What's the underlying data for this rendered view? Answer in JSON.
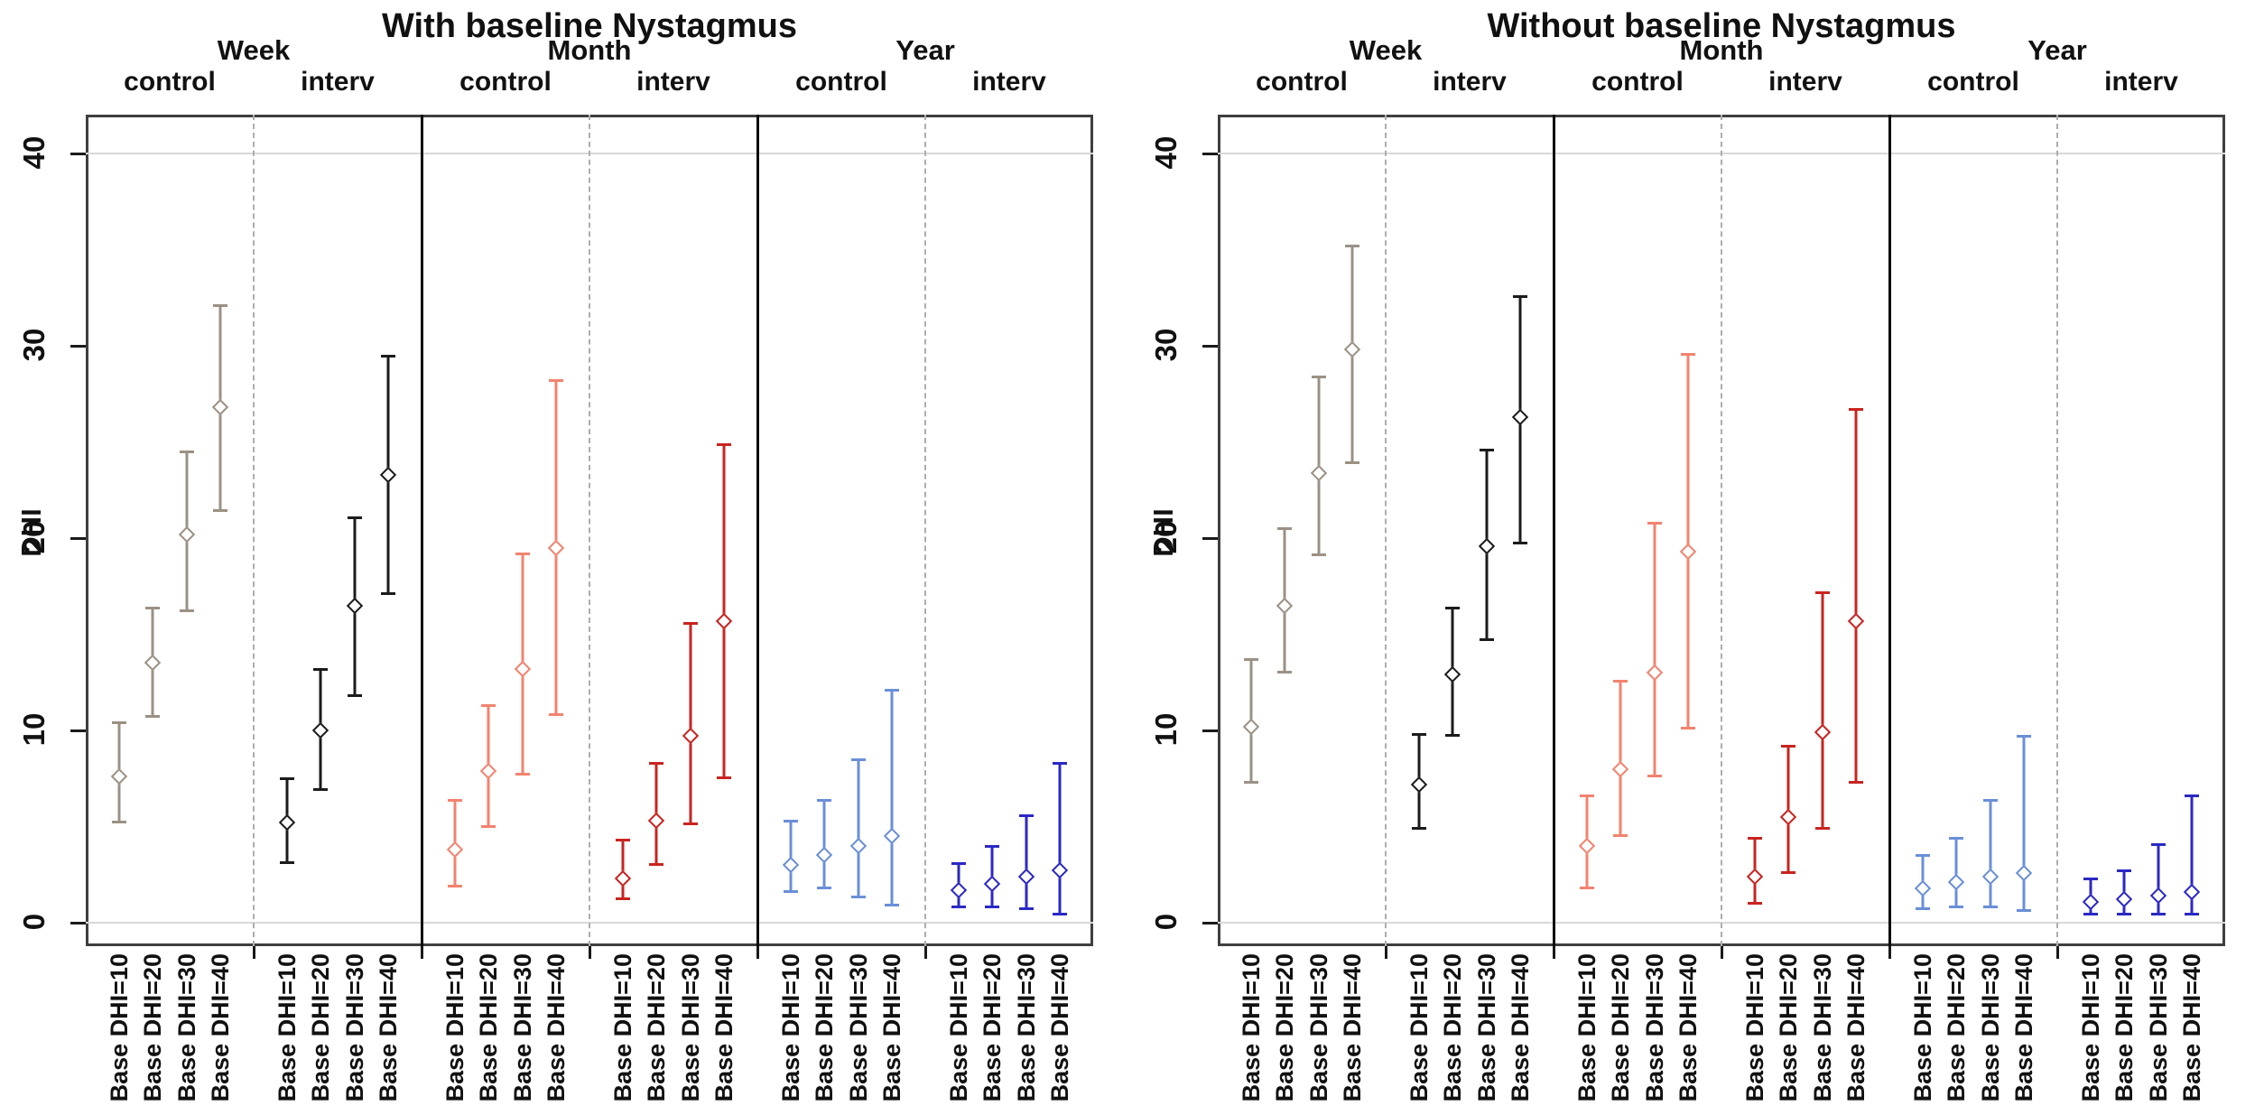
{
  "figure_name": "DHI forest plot by follow-up time and treatment arm",
  "palette": {
    "week_control": "#9B9184",
    "week_interv": "#1B1B1B",
    "month_control": "#F2836F",
    "month_interv": "#C82420",
    "year_control": "#6A8FD8",
    "year_interv": "#2B28C4",
    "gridline": "#d8d8d8",
    "solid_divider": "#0a0a0a",
    "dashed_divider": "#adadad"
  },
  "chart_data": [
    {
      "type": "errorbar",
      "title": "With baseline Nystagmus",
      "ylabel": "DHI",
      "ylim": [
        0,
        40
      ],
      "yticks": [
        0,
        10,
        20,
        30,
        40
      ],
      "gridlines_y": [
        0,
        40
      ],
      "legend_position": "none",
      "sections": [
        {
          "label": "Week",
          "groups": [
            {
              "label": "control",
              "series": "week_control",
              "color": "#9B9184",
              "points": [
                {
                  "label": "Base DHI=10",
                  "est": 7.6,
                  "lo": 5.2,
                  "hi": 10.4
                },
                {
                  "label": "Base DHI=20",
                  "est": 13.5,
                  "lo": 10.7,
                  "hi": 16.4
                },
                {
                  "label": "Base DHI=30",
                  "est": 20.2,
                  "lo": 16.2,
                  "hi": 24.5
                },
                {
                  "label": "Base DHI=40",
                  "est": 26.8,
                  "lo": 21.4,
                  "hi": 32.1
                }
              ]
            },
            {
              "label": "interv",
              "series": "week_interv",
              "color": "#1B1B1B",
              "points": [
                {
                  "label": "Base DHI=10",
                  "est": 5.2,
                  "lo": 3.1,
                  "hi": 7.5
                },
                {
                  "label": "Base DHI=20",
                  "est": 10.0,
                  "lo": 6.9,
                  "hi": 13.2
                },
                {
                  "label": "Base DHI=30",
                  "est": 16.5,
                  "lo": 11.8,
                  "hi": 21.1
                },
                {
                  "label": "Base DHI=40",
                  "est": 23.3,
                  "lo": 17.1,
                  "hi": 29.5
                }
              ]
            }
          ]
        },
        {
          "label": "Month",
          "groups": [
            {
              "label": "control",
              "series": "month_control",
              "color": "#F2836F",
              "points": [
                {
                  "label": "Base DHI=10",
                  "est": 3.8,
                  "lo": 1.9,
                  "hi": 6.4
                },
                {
                  "label": "Base DHI=20",
                  "est": 7.9,
                  "lo": 5.0,
                  "hi": 11.3
                },
                {
                  "label": "Base DHI=30",
                  "est": 13.2,
                  "lo": 7.7,
                  "hi": 19.2
                },
                {
                  "label": "Base DHI=40",
                  "est": 19.5,
                  "lo": 10.8,
                  "hi": 28.2
                }
              ]
            },
            {
              "label": "interv",
              "series": "month_interv",
              "color": "#C82420",
              "points": [
                {
                  "label": "Base DHI=10",
                  "est": 2.3,
                  "lo": 1.2,
                  "hi": 4.3
                },
                {
                  "label": "Base DHI=20",
                  "est": 5.3,
                  "lo": 3.0,
                  "hi": 8.3
                },
                {
                  "label": "Base DHI=30",
                  "est": 9.7,
                  "lo": 5.1,
                  "hi": 15.6
                },
                {
                  "label": "Base DHI=40",
                  "est": 15.7,
                  "lo": 7.5,
                  "hi": 24.9
                }
              ]
            }
          ]
        },
        {
          "label": "Year",
          "groups": [
            {
              "label": "control",
              "series": "year_control",
              "color": "#6A8FD8",
              "points": [
                {
                  "label": "Base DHI=10",
                  "est": 3.0,
                  "lo": 1.6,
                  "hi": 5.3
                },
                {
                  "label": "Base DHI=20",
                  "est": 3.5,
                  "lo": 1.8,
                  "hi": 6.4
                },
                {
                  "label": "Base DHI=30",
                  "est": 4.0,
                  "lo": 1.3,
                  "hi": 8.5
                },
                {
                  "label": "Base DHI=40",
                  "est": 4.5,
                  "lo": 0.9,
                  "hi": 12.1
                }
              ]
            },
            {
              "label": "interv",
              "series": "year_interv",
              "color": "#2B28C4",
              "points": [
                {
                  "label": "Base DHI=10",
                  "est": 1.7,
                  "lo": 0.8,
                  "hi": 3.1
                },
                {
                  "label": "Base DHI=20",
                  "est": 2.0,
                  "lo": 0.8,
                  "hi": 4.0
                },
                {
                  "label": "Base DHI=30",
                  "est": 2.4,
                  "lo": 0.7,
                  "hi": 5.6
                },
                {
                  "label": "Base DHI=40",
                  "est": 2.7,
                  "lo": 0.4,
                  "hi": 8.3
                }
              ]
            }
          ]
        }
      ]
    },
    {
      "type": "errorbar",
      "title": "Without baseline Nystagmus",
      "ylabel": "DHI",
      "ylim": [
        0,
        40
      ],
      "yticks": [
        0,
        10,
        20,
        30,
        40
      ],
      "gridlines_y": [
        0,
        40
      ],
      "legend_position": "none",
      "sections": [
        {
          "label": "Week",
          "groups": [
            {
              "label": "control",
              "series": "week_control",
              "color": "#9B9184",
              "points": [
                {
                  "label": "Base DHI=10",
                  "est": 10.2,
                  "lo": 7.3,
                  "hi": 13.7
                },
                {
                  "label": "Base DHI=20",
                  "est": 16.5,
                  "lo": 13.0,
                  "hi": 20.5
                },
                {
                  "label": "Base DHI=30",
                  "est": 23.4,
                  "lo": 19.1,
                  "hi": 28.4
                },
                {
                  "label": "Base DHI=40",
                  "est": 29.8,
                  "lo": 23.9,
                  "hi": 35.2
                }
              ]
            },
            {
              "label": "interv",
              "series": "week_interv",
              "color": "#1B1B1B",
              "points": [
                {
                  "label": "Base DHI=10",
                  "est": 7.2,
                  "lo": 4.9,
                  "hi": 9.8
                },
                {
                  "label": "Base DHI=20",
                  "est": 12.9,
                  "lo": 9.7,
                  "hi": 16.4
                },
                {
                  "label": "Base DHI=30",
                  "est": 19.6,
                  "lo": 14.7,
                  "hi": 24.6
                },
                {
                  "label": "Base DHI=40",
                  "est": 26.3,
                  "lo": 19.7,
                  "hi": 32.6
                }
              ]
            }
          ]
        },
        {
          "label": "Month",
          "groups": [
            {
              "label": "control",
              "series": "month_control",
              "color": "#F2836F",
              "points": [
                {
                  "label": "Base DHI=10",
                  "est": 4.0,
                  "lo": 1.8,
                  "hi": 6.6
                },
                {
                  "label": "Base DHI=20",
                  "est": 8.0,
                  "lo": 4.5,
                  "hi": 12.6
                },
                {
                  "label": "Base DHI=30",
                  "est": 13.0,
                  "lo": 7.6,
                  "hi": 20.8
                },
                {
                  "label": "Base DHI=40",
                  "est": 19.3,
                  "lo": 10.1,
                  "hi": 29.6
                }
              ]
            },
            {
              "label": "interv",
              "series": "month_interv",
              "color": "#C82420",
              "points": [
                {
                  "label": "Base DHI=10",
                  "est": 2.4,
                  "lo": 1.0,
                  "hi": 4.4
                },
                {
                  "label": "Base DHI=20",
                  "est": 5.5,
                  "lo": 2.6,
                  "hi": 9.2
                },
                {
                  "label": "Base DHI=30",
                  "est": 9.9,
                  "lo": 4.9,
                  "hi": 17.2
                },
                {
                  "label": "Base DHI=40",
                  "est": 15.7,
                  "lo": 7.3,
                  "hi": 26.7
                }
              ]
            }
          ]
        },
        {
          "label": "Year",
          "groups": [
            {
              "label": "control",
              "series": "year_control",
              "color": "#6A8FD8",
              "points": [
                {
                  "label": "Base DHI=10",
                  "est": 1.8,
                  "lo": 0.7,
                  "hi": 3.5
                },
                {
                  "label": "Base DHI=20",
                  "est": 2.1,
                  "lo": 0.8,
                  "hi": 4.4
                },
                {
                  "label": "Base DHI=30",
                  "est": 2.4,
                  "lo": 0.8,
                  "hi": 6.4
                },
                {
                  "label": "Base DHI=40",
                  "est": 2.6,
                  "lo": 0.6,
                  "hi": 9.7
                }
              ]
            },
            {
              "label": "interv",
              "series": "year_interv",
              "color": "#2B28C4",
              "points": [
                {
                  "label": "Base DHI=10",
                  "est": 1.1,
                  "lo": 0.4,
                  "hi": 2.3
                },
                {
                  "label": "Base DHI=20",
                  "est": 1.2,
                  "lo": 0.4,
                  "hi": 2.7
                },
                {
                  "label": "Base DHI=30",
                  "est": 1.4,
                  "lo": 0.4,
                  "hi": 4.1
                },
                {
                  "label": "Base DHI=40",
                  "est": 1.6,
                  "lo": 0.4,
                  "hi": 6.6
                }
              ]
            }
          ]
        }
      ]
    }
  ]
}
